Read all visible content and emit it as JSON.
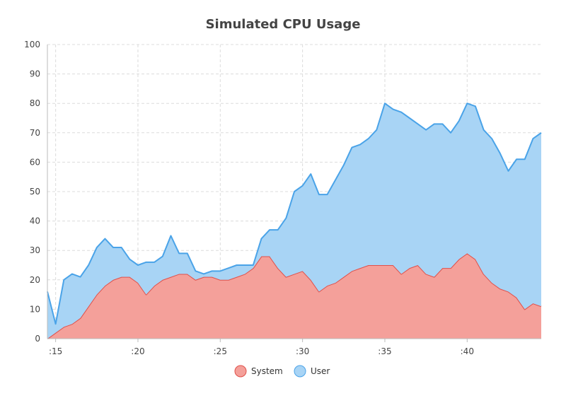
{
  "chart_data": {
    "type": "area",
    "title": "Simulated CPU Usage",
    "xlabel": "",
    "ylabel": "",
    "ylim": [
      0,
      100
    ],
    "yticks": [
      0,
      10,
      20,
      30,
      40,
      50,
      60,
      70,
      80,
      90,
      100
    ],
    "xlim": [
      14.5,
      44.5
    ],
    "xticks": [
      {
        "value": 15,
        "label": ":15"
      },
      {
        "value": 20,
        "label": ":20"
      },
      {
        "value": 25,
        "label": ":25"
      },
      {
        "value": 30,
        "label": ":30"
      },
      {
        "value": 35,
        "label": ":35"
      },
      {
        "value": 40,
        "label": ":40"
      }
    ],
    "grid": true,
    "stacked": true,
    "legend_position": "bottom-center",
    "x": [
      14.5,
      15,
      15.5,
      16,
      16.5,
      17,
      17.5,
      18,
      18.5,
      19,
      19.5,
      20,
      20.5,
      21,
      21.5,
      22,
      22.5,
      23,
      23.5,
      24,
      24.5,
      25,
      25.5,
      26,
      26.5,
      27,
      27.5,
      28,
      28.5,
      29,
      29.5,
      30,
      30.5,
      31,
      31.5,
      32,
      32.5,
      33,
      33.5,
      34,
      34.5,
      35,
      35.5,
      36,
      36.5,
      37,
      37.5,
      38,
      38.5,
      39,
      39.5,
      40,
      40.5,
      41,
      41.5,
      42,
      42.5,
      43,
      43.5,
      44,
      44.5
    ],
    "series": [
      {
        "name": "System",
        "color": "#f4a09a",
        "line_color": "#e0504a",
        "values": [
          0,
          2,
          4,
          5,
          7,
          11,
          15,
          18,
          20,
          21,
          21,
          19,
          15,
          18,
          20,
          21,
          22,
          22,
          20,
          21,
          21,
          20,
          20,
          21,
          22,
          24,
          28,
          28,
          24,
          21,
          22,
          23,
          20,
          16,
          18,
          19,
          21,
          23,
          24,
          25,
          25,
          25,
          25,
          22,
          24,
          25,
          22,
          21,
          24,
          24,
          27,
          29,
          27,
          22,
          19,
          17,
          16,
          14,
          10,
          12,
          11
        ]
      },
      {
        "name": "User",
        "color": "#a8d4f5",
        "line_color": "#4aa3e8",
        "values": [
          16,
          3,
          16,
          17,
          14,
          14,
          16,
          16,
          11,
          10,
          6,
          6,
          11,
          8,
          8,
          14,
          7,
          7,
          3,
          1,
          2,
          3,
          4,
          4,
          3,
          1,
          6,
          9,
          13,
          20,
          28,
          29,
          36,
          33,
          31,
          35,
          38,
          42,
          42,
          43,
          46,
          55,
          53,
          55,
          51,
          48,
          49,
          52,
          49,
          46,
          47,
          51,
          52,
          49,
          49,
          46,
          41,
          47,
          51,
          56,
          59
        ]
      }
    ]
  }
}
